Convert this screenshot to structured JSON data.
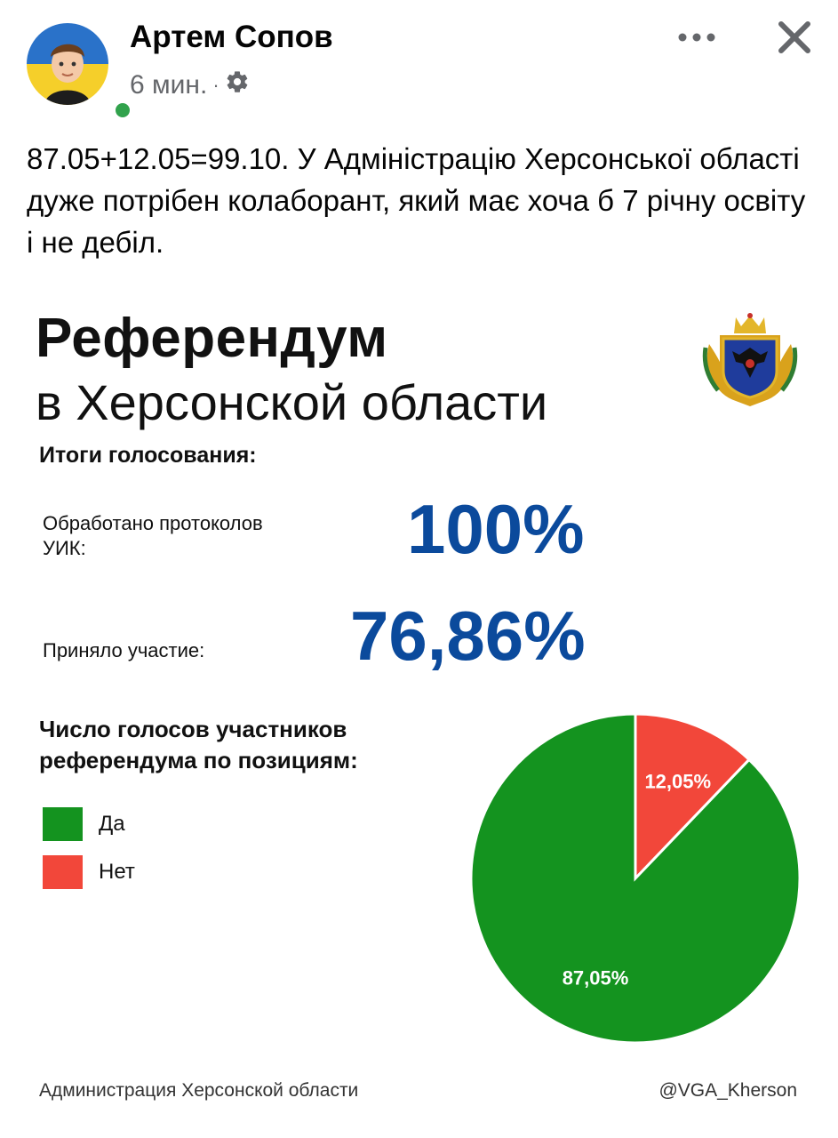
{
  "post": {
    "author": "Артем Сопов",
    "time": "6 мин.",
    "separator": "·",
    "text": "87.05+12.05=99.10. У Адміністрацію Херсонської області дуже потрібен колаборант, який має хоча б 7 річну освіту і не дебіл."
  },
  "icons": {
    "audience": "gear-icon",
    "more": "more-dots-icon",
    "close": "close-icon"
  },
  "colors": {
    "accent_blue": "#0b4a9c",
    "yes": "#14931f",
    "no": "#f2473a",
    "online": "#31a24c"
  },
  "infographic": {
    "title": "Референдум",
    "subtitle": "в Херсонской области",
    "results_heading": "Итоги голосования:",
    "processed_label": "Обработано протоколов УИК:",
    "processed_value": "100%",
    "participation_label": "Приняло участие:",
    "participation_value": "76,86%",
    "votes_heading": "Число голосов участников референдума по позициям:",
    "footer_left": "Администрация Херсонской области",
    "footer_right": "@VGA_Kherson"
  },
  "chart_data": {
    "type": "pie",
    "title": "Число голосов участников референдума по позициям:",
    "slices": [
      {
        "label": "Да",
        "value": 87.05,
        "display": "87,05%",
        "color": "#14931f"
      },
      {
        "label": "Нет",
        "value": 12.05,
        "display": "12,05%",
        "color": "#f2473a"
      }
    ],
    "legend_position": "left"
  }
}
